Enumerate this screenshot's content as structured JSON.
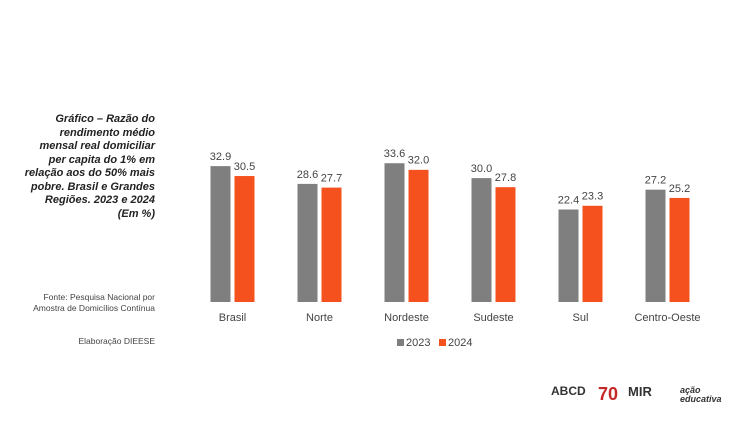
{
  "chart_data": {
    "type": "bar",
    "title": "Gráfico – Razão do rendimento médio mensal real domiciliar per capita do 1% em relação aos do 50% mais pobre. Brasil e Grandes Regiões. 2023 e 2024 (Em %)",
    "source": "Fonte: Pesquisa Nacional por Amostra de Domicílios Contínua",
    "credit": "Elaboração DIEESE",
    "categories": [
      "Brasil",
      "Norte",
      "Nordeste",
      "Sudeste",
      "Sul",
      "Centro-Oeste"
    ],
    "series": [
      {
        "name": "2023",
        "color": "#7f7f7f",
        "values": [
          32.9,
          28.6,
          33.6,
          30.0,
          22.4,
          27.2
        ],
        "value_labels": [
          "32.9",
          "28.6",
          "33.6",
          "30.0",
          "22.4",
          "27.2"
        ]
      },
      {
        "name": "2024",
        "color": "#f4511e",
        "values": [
          30.5,
          27.7,
          32.0,
          27.8,
          23.3,
          25.2
        ],
        "value_labels": [
          "30.5",
          "27.7",
          "32.0",
          "27.8",
          "23.3",
          "25.2"
        ]
      }
    ],
    "legend": "bottom"
  },
  "logos": [
    "ABCD",
    "70",
    "MIR",
    "ação educativa"
  ]
}
